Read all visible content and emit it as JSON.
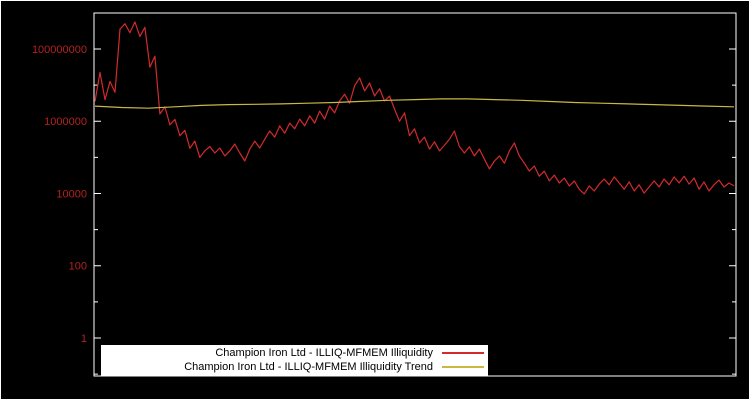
{
  "chart_data": {
    "type": "line",
    "title": "",
    "background": "#000000",
    "axis_color": "#ffffff",
    "tick_label_color": "#b22222",
    "legend_position": "bottom-center",
    "grid": false,
    "y_scale": "log",
    "ylim_log10": [
      -1.05,
      9.0
    ],
    "y_ticks": [
      {
        "label": "100000000",
        "log10": 8
      },
      {
        "label": "1000000",
        "log10": 6
      },
      {
        "label": "10000",
        "log10": 4
      },
      {
        "label": "100",
        "log10": 2
      },
      {
        "label": "1",
        "log10": 0
      }
    ],
    "x_axis": {
      "labels_visible": false
    },
    "series": [
      {
        "name": "Champion Iron Ltd - ILLIQ-MFMEM Illiquidity",
        "color": "#d22b2b",
        "width": 1.2,
        "values_log10": [
          6.55,
          7.35,
          6.6,
          7.1,
          6.8,
          8.55,
          8.7,
          8.45,
          8.75,
          8.35,
          8.6,
          7.5,
          7.8,
          6.2,
          6.4,
          5.9,
          6.05,
          5.6,
          5.75,
          5.25,
          5.45,
          5.0,
          5.18,
          5.3,
          5.12,
          5.26,
          5.04,
          5.18,
          5.37,
          5.12,
          4.9,
          5.23,
          5.45,
          5.26,
          5.5,
          5.73,
          5.56,
          5.87,
          5.67,
          5.95,
          5.79,
          6.06,
          5.87,
          6.15,
          5.95,
          6.28,
          6.06,
          6.42,
          6.23,
          6.56,
          6.75,
          6.5,
          6.98,
          7.2,
          6.84,
          7.06,
          6.7,
          6.9,
          6.56,
          6.7,
          6.34,
          6.0,
          6.23,
          5.6,
          5.79,
          5.4,
          5.56,
          5.23,
          5.43,
          5.18,
          5.34,
          5.5,
          5.73,
          5.3,
          5.12,
          5.29,
          5.04,
          5.23,
          4.95,
          4.68,
          4.9,
          5.04,
          4.84,
          5.18,
          5.4,
          5.04,
          4.84,
          4.62,
          4.76,
          4.48,
          4.62,
          4.35,
          4.51,
          4.29,
          4.43,
          4.21,
          4.35,
          4.12,
          3.99,
          4.21,
          4.07,
          4.26,
          4.4,
          4.24,
          4.46,
          4.29,
          4.12,
          4.32,
          4.07,
          4.24,
          4.01,
          4.18,
          4.35,
          4.18,
          4.4,
          4.24,
          4.46,
          4.29,
          4.48,
          4.26,
          4.43,
          4.12,
          4.32,
          4.07,
          4.24,
          4.37,
          4.18,
          4.29,
          4.21
        ]
      },
      {
        "name": "Champion Iron Ltd - ILLIQ-MFMEM Illiquidity Trend",
        "color": "#c9b843",
        "width": 1.2,
        "values_log10": [
          6.42,
          6.38,
          6.36,
          6.4,
          6.44,
          6.46,
          6.47,
          6.48,
          6.5,
          6.52,
          6.55,
          6.58,
          6.6,
          6.62,
          6.62,
          6.6,
          6.58,
          6.55,
          6.52,
          6.5,
          6.48,
          6.46,
          6.44,
          6.42,
          6.4
        ]
      }
    ]
  }
}
